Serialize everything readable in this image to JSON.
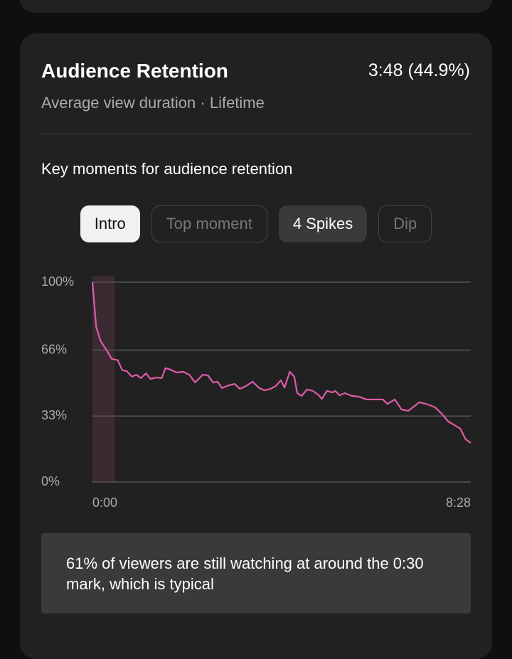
{
  "header": {
    "title": "Audience Retention",
    "stat": "3:48 (44.9%)",
    "subtitle": "Average view duration · Lifetime"
  },
  "section_title": "Key moments for audience retention",
  "chips": [
    {
      "label": "Intro",
      "state": "selected"
    },
    {
      "label": "Top moment",
      "state": "disabled"
    },
    {
      "label": "4 Spikes",
      "state": "active"
    },
    {
      "label": "Dip",
      "state": "disabled"
    }
  ],
  "chart_data": {
    "type": "line",
    "color": "#e05ba8",
    "grid": true,
    "highlight": {
      "xlim": [
        0,
        30
      ],
      "color": "#3b2a31"
    },
    "xlim": [
      0,
      508
    ],
    "ylim": [
      0,
      100
    ],
    "xticks": [
      {
        "value": 0,
        "label": "0:00"
      },
      {
        "value": 508,
        "label": "8:28"
      }
    ],
    "yticks": [
      {
        "value": 0,
        "label": "0%"
      },
      {
        "value": 33,
        "label": "33%"
      },
      {
        "value": 66,
        "label": "66%"
      },
      {
        "value": 100,
        "label": "100%"
      }
    ],
    "x": [
      0,
      5,
      11,
      19,
      26,
      34,
      40,
      46,
      53,
      59,
      65,
      72,
      78,
      86,
      93,
      98,
      105,
      113,
      122,
      130,
      138,
      148,
      155,
      162,
      168,
      174,
      183,
      191,
      198,
      206,
      215,
      224,
      231,
      239,
      246,
      253,
      258,
      265,
      271,
      275,
      281,
      288,
      296,
      304,
      308,
      315,
      322,
      326,
      332,
      339,
      348,
      358,
      368,
      377,
      390,
      396,
      406,
      415,
      424,
      439,
      448,
      460,
      469,
      478,
      486,
      494,
      501,
      508
    ],
    "values": [
      100,
      77.6,
      70.5,
      66,
      61.6,
      61,
      56,
      55.5,
      52.7,
      53.7,
      52,
      54.4,
      51.6,
      52.3,
      52,
      57,
      56.2,
      54.8,
      55.2,
      53.7,
      49.8,
      53.7,
      53.4,
      49.8,
      50.2,
      47,
      48.4,
      49.1,
      46.6,
      48,
      50.2,
      47,
      45.9,
      46.6,
      48,
      50.9,
      47.3,
      55.2,
      52.7,
      44.5,
      43.1,
      46.3,
      45.6,
      43.4,
      41.6,
      45.6,
      44.8,
      45.6,
      43.4,
      44.5,
      43.1,
      42.7,
      41.3,
      41.3,
      41.3,
      39.1,
      41.3,
      36.3,
      35.6,
      39.9,
      39.1,
      37.4,
      34.2,
      30.2,
      28.5,
      26.7,
      21.4,
      19.6
    ]
  },
  "insight": "61% of viewers are still watching at around the 0:30 mark, which is typical"
}
